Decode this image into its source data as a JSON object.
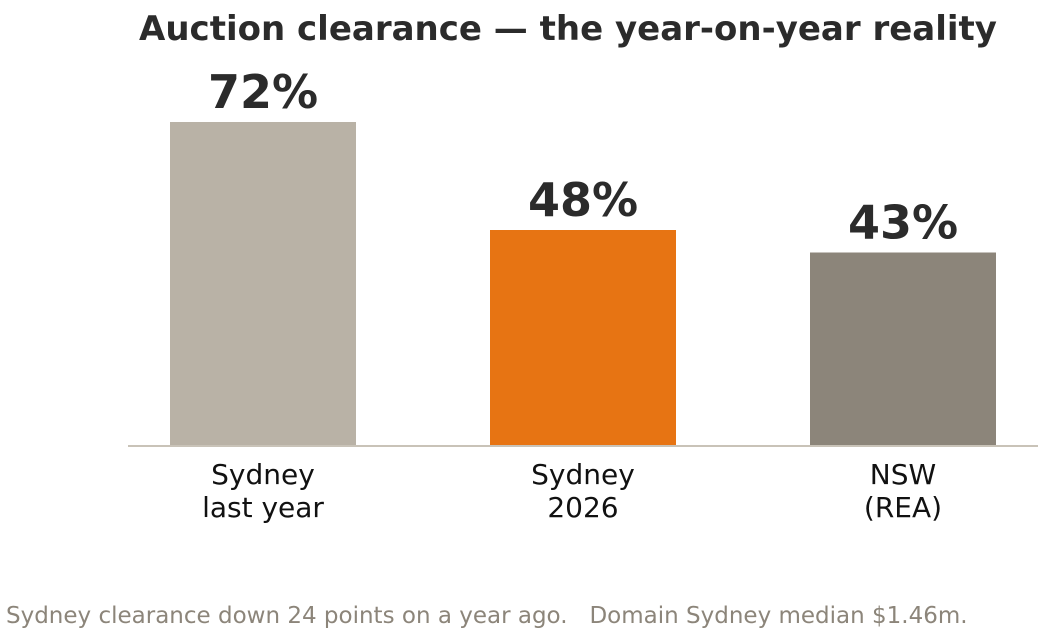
{
  "chart_data": {
    "type": "bar",
    "title": "Auction clearance — the year-on-year reality",
    "xlabel": "",
    "ylabel": "",
    "unit": "%",
    "categories": [
      [
        "Sydney",
        "last year"
      ],
      [
        "Sydney",
        "2026"
      ],
      [
        "NSW",
        "(REA)"
      ]
    ],
    "values": [
      72,
      48,
      43
    ],
    "value_labels": [
      "72%",
      "48%",
      "43%"
    ],
    "colors": [
      "#b9b2a6",
      "#e77413",
      "#8c857a"
    ],
    "ylim": [
      0,
      100
    ],
    "grid": false,
    "legend": "none"
  },
  "caption": "Sydney clearance down 24 points on a year ago.   Domain Sydney median $1.46m.",
  "colors": {
    "baseline": "#c9c3b8",
    "text_dark": "#2b2b2b",
    "caption": "#8c857a"
  }
}
